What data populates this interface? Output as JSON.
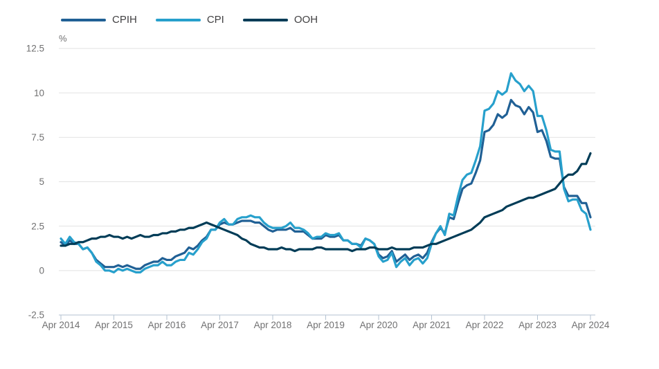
{
  "chart_data": {
    "type": "line",
    "title": "",
    "unit_label": "%",
    "grid": true,
    "legend_position": "top-left",
    "x_axis": {
      "frequency": "monthly",
      "start": "Apr 2014",
      "end": "Apr 2024",
      "tick_labels": [
        "Apr 2014",
        "Apr 2015",
        "Apr 2016",
        "Apr 2017",
        "Apr 2018",
        "Apr 2019",
        "Apr 2020",
        "Apr 2021",
        "Apr 2022",
        "Apr 2023",
        "Apr 2024"
      ]
    },
    "y_axis": {
      "min": -2.5,
      "max": 12.5,
      "step": 2.5,
      "tick_labels": [
        "-2.5",
        "0",
        "2.5",
        "5",
        "7.5",
        "10",
        "12.5"
      ]
    },
    "series": [
      {
        "name": "CPIH",
        "color": "#206095",
        "values": [
          1.6,
          1.4,
          1.7,
          1.5,
          1.5,
          1.2,
          1.3,
          1.0,
          0.6,
          0.4,
          0.2,
          0.2,
          0.2,
          0.3,
          0.2,
          0.3,
          0.2,
          0.1,
          0.1,
          0.3,
          0.4,
          0.5,
          0.5,
          0.7,
          0.6,
          0.6,
          0.8,
          0.9,
          1.0,
          1.3,
          1.2,
          1.4,
          1.7,
          1.9,
          2.3,
          2.3,
          2.6,
          2.7,
          2.6,
          2.6,
          2.7,
          2.8,
          2.8,
          2.8,
          2.7,
          2.7,
          2.5,
          2.3,
          2.2,
          2.3,
          2.3,
          2.3,
          2.4,
          2.2,
          2.2,
          2.2,
          2.0,
          1.8,
          1.8,
          1.8,
          2.0,
          1.9,
          1.9,
          2.0,
          1.7,
          1.7,
          1.5,
          1.5,
          1.4,
          1.8,
          1.7,
          1.5,
          0.9,
          0.7,
          0.8,
          1.1,
          0.5,
          0.7,
          0.9,
          0.6,
          0.8,
          0.9,
          0.7,
          1.0,
          1.6,
          2.1,
          2.4,
          2.1,
          3.0,
          2.9,
          3.8,
          4.6,
          4.8,
          4.9,
          5.5,
          6.2,
          7.8,
          7.9,
          8.2,
          8.8,
          8.6,
          8.8,
          9.6,
          9.3,
          9.2,
          8.8,
          9.2,
          8.9,
          7.8,
          7.9,
          7.3,
          6.4,
          6.3,
          6.3,
          4.7,
          4.2,
          4.2,
          4.2,
          3.8,
          3.8,
          3.0
        ]
      },
      {
        "name": "CPI",
        "color": "#27A0CC",
        "values": [
          1.8,
          1.5,
          1.9,
          1.6,
          1.5,
          1.2,
          1.3,
          1.0,
          0.5,
          0.3,
          0.0,
          0.0,
          -0.1,
          0.1,
          0.0,
          0.1,
          0.0,
          -0.1,
          -0.1,
          0.1,
          0.2,
          0.3,
          0.3,
          0.5,
          0.3,
          0.3,
          0.5,
          0.6,
          0.6,
          1.0,
          0.9,
          1.2,
          1.6,
          1.8,
          2.3,
          2.3,
          2.7,
          2.9,
          2.6,
          2.6,
          2.9,
          3.0,
          3.0,
          3.1,
          3.0,
          3.0,
          2.7,
          2.5,
          2.4,
          2.4,
          2.4,
          2.5,
          2.7,
          2.4,
          2.4,
          2.3,
          2.1,
          1.8,
          1.9,
          1.9,
          2.1,
          2.0,
          2.0,
          2.1,
          1.7,
          1.7,
          1.5,
          1.5,
          1.3,
          1.8,
          1.7,
          1.5,
          0.8,
          0.5,
          0.6,
          1.0,
          0.2,
          0.5,
          0.7,
          0.3,
          0.6,
          0.7,
          0.4,
          0.7,
          1.5,
          2.1,
          2.5,
          2.0,
          3.2,
          3.1,
          4.2,
          5.1,
          5.4,
          5.5,
          6.2,
          7.0,
          9.0,
          9.1,
          9.4,
          10.1,
          9.9,
          10.1,
          11.1,
          10.7,
          10.5,
          10.1,
          10.4,
          10.1,
          8.7,
          8.7,
          7.9,
          6.8,
          6.7,
          6.7,
          4.6,
          3.9,
          4.0,
          4.0,
          3.4,
          3.2,
          2.3
        ]
      },
      {
        "name": "OOH",
        "color": "#003C57",
        "values": [
          1.4,
          1.4,
          1.5,
          1.5,
          1.6,
          1.6,
          1.7,
          1.8,
          1.8,
          1.9,
          1.9,
          2.0,
          1.9,
          1.9,
          1.8,
          1.9,
          1.8,
          1.9,
          2.0,
          1.9,
          1.9,
          2.0,
          2.0,
          2.1,
          2.1,
          2.2,
          2.2,
          2.3,
          2.3,
          2.4,
          2.4,
          2.5,
          2.6,
          2.7,
          2.6,
          2.5,
          2.4,
          2.3,
          2.2,
          2.1,
          2.0,
          1.8,
          1.7,
          1.5,
          1.4,
          1.3,
          1.3,
          1.2,
          1.2,
          1.2,
          1.3,
          1.2,
          1.2,
          1.1,
          1.2,
          1.2,
          1.2,
          1.2,
          1.3,
          1.3,
          1.2,
          1.2,
          1.2,
          1.2,
          1.2,
          1.2,
          1.1,
          1.2,
          1.2,
          1.2,
          1.3,
          1.3,
          1.2,
          1.2,
          1.2,
          1.3,
          1.2,
          1.2,
          1.2,
          1.2,
          1.3,
          1.3,
          1.3,
          1.4,
          1.5,
          1.5,
          1.6,
          1.7,
          1.8,
          1.9,
          2.0,
          2.1,
          2.2,
          2.3,
          2.5,
          2.7,
          3.0,
          3.1,
          3.2,
          3.3,
          3.4,
          3.6,
          3.7,
          3.8,
          3.9,
          4.0,
          4.1,
          4.1,
          4.2,
          4.3,
          4.4,
          4.5,
          4.6,
          4.9,
          5.2,
          5.4,
          5.4,
          5.6,
          6.0,
          6.0,
          6.6
        ]
      }
    ]
  },
  "colors": {
    "background": "#ffffff",
    "gridline": "#e2e2e2",
    "axis": "#b3c2d1",
    "axis_text": "#707071",
    "legend_text": "#414042"
  }
}
